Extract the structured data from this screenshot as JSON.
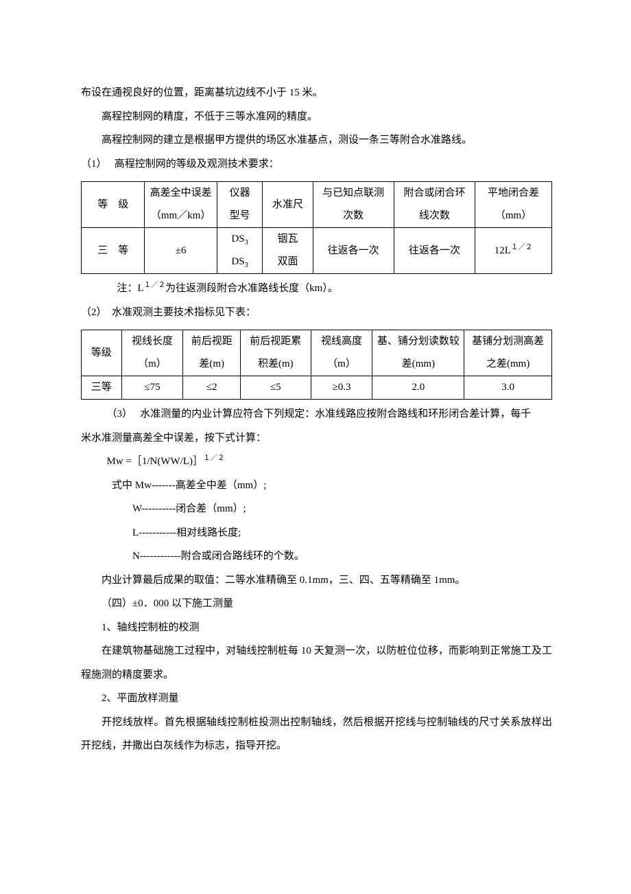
{
  "p1": "布设在通视良好的位置，距离基坑边线不小于 15 米。",
  "p2": "高程控制网的精度，不低于三等水准网的精度。",
  "p3": "高程控制网的建立是根据甲方提供的场区水准基点，测设一条三等附合水准路线。",
  "p4_num": "（1）",
  "p4": "　 高程控制网的等级及观测技术要求：",
  "table1": {
    "head": {
      "c1a": "等　级",
      "c2a": "高差全中误差",
      "c2b": "（mm／km）",
      "c3a": "仪器",
      "c3b": "型号",
      "c4a": "水准尺",
      "c5a": "与已知点联测",
      "c5b": "次数",
      "c6a": "附合或闭合环",
      "c6b": "线次数",
      "c7a": "平地闭合差",
      "c7b": "（mm）"
    },
    "row": {
      "c1": "三　等",
      "c2": "±6",
      "c3a": "DS",
      "c3sub": "3",
      "c4a": "铟瓦",
      "c4b": "双面",
      "c5": "往返各一次",
      "c6": "往返各一次",
      "c7a": "12L",
      "c7sup": "１／２"
    }
  },
  "note1_a": "注：L",
  "note1_sup": "１／２",
  "note1_b": "为往返测段附合水准路线长度（km）。",
  "p5_num": "（2）",
  "p5": "　水准观测主要技术指标见下表：",
  "table2": {
    "head": {
      "c1": "等级",
      "c2a": "视线长度",
      "c2b": "（m）",
      "c3a": "前后视距",
      "c3b": "差(m)",
      "c4a": "前后视距累",
      "c4b": "积差(m)",
      "c5a": "视线高度",
      "c5b": "（m）",
      "c6a": "基、铺分划读数较",
      "c6b": "差(mm)",
      "c7a": "基铺分划测高差",
      "c7b": "之差(mm)"
    },
    "row": {
      "c1": "三等",
      "c2": "≤75",
      "c3": "≤2",
      "c4": "≤5",
      "c5": "≥0.3",
      "c6": "2.0",
      "c7": "3.0"
    }
  },
  "p6a": "（3）　 水准测量的内业计算应符合下列规定：水准线路应按附合路线和环形闭合差计算，每千",
  "p6b": "米水准测量高差全中误差，按下式计算：",
  "formula_a": "Mw =［1/N(WW/L)］",
  "formula_sup": "１／２",
  "def0": "式中 Mw-------高差全中差（mm）;",
  "def1": "W----------闭合差（mm）;",
  "def2": "L-----------相对线路长度;",
  "def3": "N------------附合或闭合路线环的个数。",
  "p7": "内业计算最后成果的取值：二等水准精确至 0.1mm，三、四、五等精确至 1mm。",
  "p8": "（四）±0．000 以下施工测量",
  "p9": "1、轴线控制桩的校测",
  "p10": "在建筑物基础施工过程中，对轴线控制桩每 10 天复测一次，以防桩位位移，而影响到正常施工及工程施测的精度要求。",
  "p11": "2、平面放样测量",
  "p12": "开挖线放样。首先根据轴线控制桩投测出控制轴线，然后根据开挖线与控制轴线的尺寸关系放样出开挖线，并撒出白灰线作为标志，指导开挖。"
}
